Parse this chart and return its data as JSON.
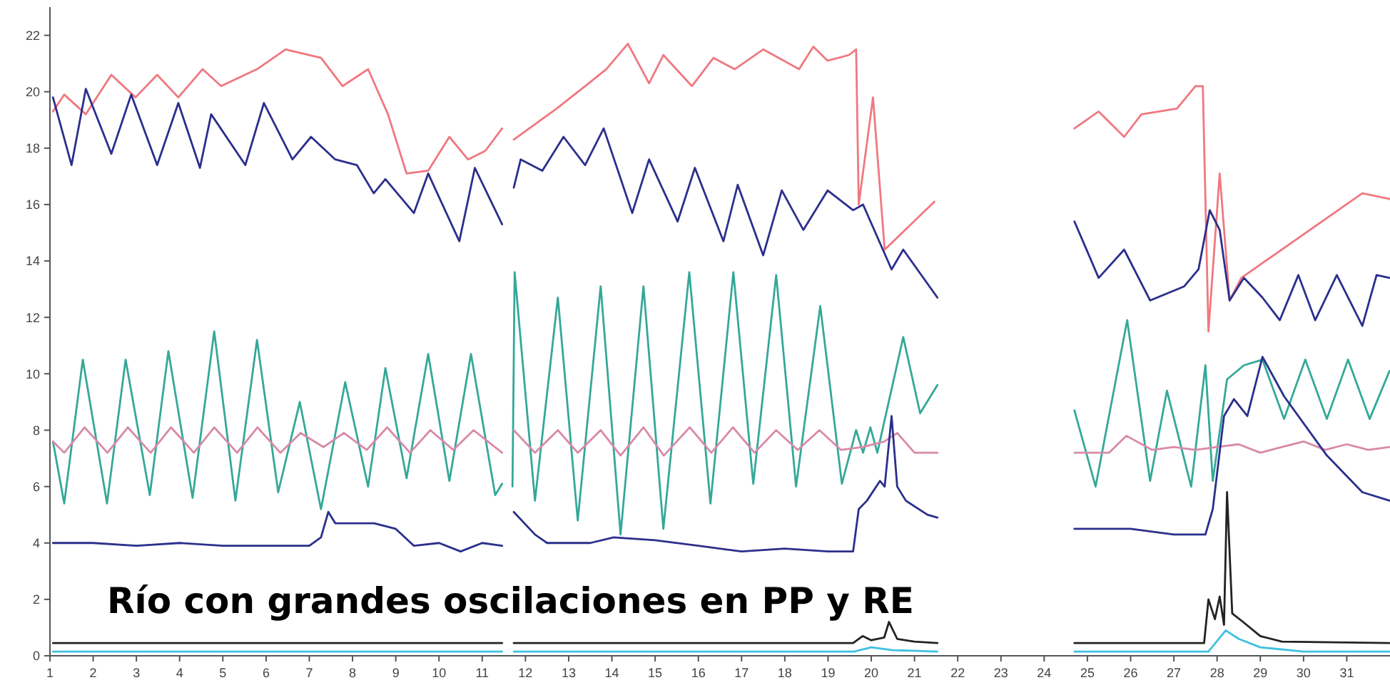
{
  "chart_data": {
    "type": "line",
    "annotations": [
      "Río con grandes oscilaciones en PP y RE"
    ],
    "xlim": [
      1,
      32
    ],
    "xticks": [
      1,
      2,
      3,
      4,
      5,
      6,
      7,
      8,
      9,
      10,
      11,
      12,
      13,
      14,
      15,
      16,
      17,
      18,
      19,
      20,
      21,
      22,
      23,
      24,
      25,
      26,
      27,
      28,
      29,
      30,
      31
    ],
    "ylim": [
      0,
      23
    ],
    "yticks": [
      0,
      2,
      4,
      6,
      8,
      10,
      12,
      14,
      16,
      18,
      20,
      22
    ],
    "grid": false,
    "marker": "none",
    "line_style": "solid",
    "series": [
      {
        "color": "#f07880",
        "x": [
          1.07,
          1.33,
          1.83,
          2.42,
          2.98,
          3.48,
          3.97,
          4.53,
          4.96,
          5.79,
          6.45,
          7.27,
          7.77,
          8.36,
          8.82,
          9.25,
          9.75,
          10.24,
          10.67,
          11.07,
          11.46,
          11.6,
          11.73,
          12.72,
          13.38,
          13.87,
          14.37,
          14.86,
          15.19,
          15.85,
          16.35,
          16.84,
          17.5,
          18.33,
          18.66,
          18.99,
          19.48,
          19.65,
          19.71,
          20.04,
          20.31,
          21.46,
          23,
          24.7,
          25.26,
          25.85,
          26.25,
          27.07,
          27.5,
          27.67,
          27.8,
          28.06,
          28.29,
          28.56,
          31.36,
          31.99
        ],
        "values": [
          19.3,
          19.9,
          19.2,
          20.6,
          19.8,
          20.6,
          19.8,
          20.8,
          20.2,
          20.8,
          21.5,
          21.2,
          20.2,
          20.8,
          19.2,
          17.1,
          17.2,
          18.4,
          17.6,
          17.9,
          18.7,
          null,
          18.3,
          19.4,
          20.2,
          20.8,
          21.7,
          20.3,
          21.3,
          20.2,
          21.2,
          20.8,
          21.5,
          20.8,
          21.6,
          21.1,
          21.3,
          21.5,
          16.0,
          19.8,
          14.4,
          16.1,
          null,
          18.7,
          19.3,
          18.4,
          19.2,
          19.4,
          20.2,
          20.2,
          11.5,
          17.1,
          12.6,
          13.4,
          16.4,
          16.2
        ]
      },
      {
        "color": "#2b2f8c",
        "x": [
          1.07,
          1.5,
          1.83,
          2.42,
          2.88,
          3.48,
          3.97,
          4.47,
          4.73,
          5.52,
          5.95,
          6.61,
          7.04,
          7.6,
          8.1,
          8.49,
          8.76,
          9.42,
          9.75,
          10.47,
          10.83,
          11.46,
          11.6,
          11.73,
          11.89,
          12.39,
          12.88,
          13.38,
          13.81,
          14.47,
          14.86,
          15.52,
          15.92,
          16.58,
          16.91,
          17.5,
          17.93,
          18.43,
          18.99,
          19.58,
          19.81,
          20.47,
          20.74,
          21.53,
          23,
          24.7,
          25.26,
          25.85,
          26.45,
          27.24,
          27.57,
          27.83,
          28.06,
          28.29,
          28.62,
          29.05,
          29.45,
          29.88,
          30.27,
          30.77,
          31.36,
          31.69,
          31.99
        ],
        "values": [
          19.8,
          17.4,
          20.1,
          17.8,
          19.9,
          17.4,
          19.6,
          17.3,
          19.2,
          17.4,
          19.6,
          17.6,
          18.4,
          17.6,
          17.4,
          16.4,
          16.9,
          15.7,
          17.1,
          14.7,
          17.3,
          15.3,
          null,
          16.6,
          17.6,
          17.2,
          18.4,
          17.4,
          18.7,
          15.7,
          17.6,
          15.4,
          17.3,
          14.7,
          16.7,
          14.2,
          16.5,
          15.1,
          16.5,
          15.8,
          16.0,
          13.7,
          14.4,
          12.7,
          null,
          15.4,
          13.4,
          14.4,
          12.6,
          13.1,
          13.7,
          15.8,
          15.1,
          12.6,
          13.4,
          12.7,
          11.9,
          13.5,
          11.9,
          13.5,
          11.7,
          13.5,
          13.4
        ]
      },
      {
        "color": "#35a898",
        "x": [
          1.07,
          1.33,
          1.76,
          2.32,
          2.75,
          3.31,
          3.74,
          4.3,
          4.8,
          5.29,
          5.79,
          6.28,
          6.78,
          7.27,
          7.83,
          8.36,
          8.76,
          9.25,
          9.75,
          10.24,
          10.74,
          11.3,
          11.46,
          11.6,
          11.7,
          11.75,
          12.22,
          12.75,
          13.21,
          13.74,
          14.2,
          14.73,
          15.19,
          15.79,
          16.28,
          16.81,
          17.27,
          17.8,
          18.26,
          18.82,
          19.32,
          19.65,
          19.81,
          19.98,
          20.14,
          20.74,
          21.13,
          21.53,
          23,
          24.7,
          25.19,
          25.92,
          26.45,
          26.84,
          27.4,
          27.73,
          27.9,
          28.23,
          28.62,
          29.05,
          29.55,
          30.04,
          30.54,
          31.03,
          31.53,
          31.99
        ],
        "values": [
          7.6,
          5.4,
          10.5,
          5.4,
          10.5,
          5.7,
          10.8,
          5.6,
          11.5,
          5.5,
          11.2,
          5.8,
          9.0,
          5.2,
          9.7,
          6.0,
          10.2,
          6.3,
          10.7,
          6.2,
          10.7,
          5.7,
          6.1,
          null,
          6.0,
          13.6,
          5.5,
          12.7,
          4.8,
          13.1,
          4.3,
          13.1,
          4.5,
          13.6,
          5.4,
          13.6,
          6.1,
          13.5,
          6.0,
          12.4,
          6.1,
          8.0,
          7.2,
          8.1,
          7.2,
          11.3,
          8.6,
          9.6,
          null,
          8.7,
          6.0,
          11.9,
          6.2,
          9.4,
          6.0,
          10.3,
          6.2,
          9.8,
          10.3,
          10.5,
          8.4,
          10.5,
          8.4,
          10.5,
          8.4,
          10.1
        ]
      },
      {
        "color": "#d88aa8",
        "x": [
          1.07,
          1.33,
          1.8,
          2.33,
          2.8,
          3.33,
          3.8,
          4.33,
          4.8,
          5.33,
          5.8,
          6.33,
          6.8,
          7.33,
          7.8,
          8.33,
          8.8,
          9.33,
          9.8,
          10.33,
          10.8,
          11.46,
          11.6,
          11.73,
          12.22,
          12.75,
          13.21,
          13.74,
          14.2,
          14.73,
          15.2,
          15.8,
          16.3,
          16.8,
          17.3,
          17.8,
          18.3,
          18.8,
          19.3,
          19.8,
          20.3,
          20.6,
          21.0,
          21.53,
          23,
          24.7,
          25.5,
          25.9,
          26.5,
          27.0,
          27.5,
          28.0,
          28.5,
          29.0,
          29.5,
          30.0,
          30.5,
          31.0,
          31.5,
          31.99
        ],
        "values": [
          7.6,
          7.2,
          8.1,
          7.2,
          8.1,
          7.2,
          8.1,
          7.2,
          8.1,
          7.2,
          8.1,
          7.2,
          7.9,
          7.4,
          7.9,
          7.3,
          8.1,
          7.2,
          8.0,
          7.3,
          8.0,
          7.2,
          null,
          8.0,
          7.2,
          8.0,
          7.2,
          8.0,
          7.1,
          8.1,
          7.1,
          8.1,
          7.2,
          8.1,
          7.2,
          8.0,
          7.3,
          8.0,
          7.3,
          7.4,
          7.6,
          7.9,
          7.2,
          7.2,
          null,
          7.2,
          7.2,
          7.8,
          7.3,
          7.4,
          7.3,
          7.4,
          7.5,
          7.2,
          7.4,
          7.6,
          7.3,
          7.5,
          7.3,
          7.4
        ]
      },
      {
        "color": "#2b2f8c",
        "x": [
          1.07,
          2.0,
          3.0,
          4.0,
          5.0,
          6.0,
          7.0,
          7.27,
          7.44,
          7.6,
          8.5,
          9.0,
          9.42,
          10.0,
          10.5,
          11.0,
          11.46,
          11.6,
          11.73,
          12.22,
          12.5,
          13.5,
          14.04,
          15.0,
          16.0,
          17.0,
          18.0,
          19.0,
          19.58,
          19.71,
          19.9,
          20.2,
          20.31,
          20.47,
          20.6,
          20.8,
          21.3,
          21.53,
          23,
          24.7,
          26.0,
          27.0,
          27.73,
          27.9,
          28.16,
          28.39,
          28.7,
          29.05,
          29.55,
          30.54,
          31.36,
          31.99
        ],
        "values": [
          4.0,
          4.0,
          3.9,
          4.0,
          3.9,
          3.9,
          3.9,
          4.2,
          5.1,
          4.7,
          4.7,
          4.5,
          3.9,
          4.0,
          3.7,
          4.0,
          3.9,
          null,
          5.1,
          4.3,
          4.0,
          4.0,
          4.2,
          4.1,
          3.9,
          3.7,
          3.8,
          3.7,
          3.7,
          5.2,
          5.5,
          6.2,
          6.0,
          8.5,
          6.0,
          5.5,
          5.0,
          4.9,
          null,
          4.5,
          4.5,
          4.3,
          4.3,
          5.2,
          8.5,
          9.1,
          8.5,
          10.6,
          9.2,
          7.1,
          5.8,
          5.5
        ]
      },
      {
        "color": "#222222",
        "x": [
          1.07,
          11.46,
          11.6,
          11.73,
          19.58,
          19.8,
          20.0,
          20.3,
          20.41,
          20.6,
          21.0,
          21.53,
          23,
          24.7,
          27.7,
          27.8,
          27.95,
          28.06,
          28.16,
          28.23,
          28.35,
          28.6,
          29.0,
          29.5,
          31.99
        ],
        "values": [
          0.45,
          0.45,
          null,
          0.45,
          0.45,
          0.7,
          0.55,
          0.65,
          1.2,
          0.6,
          0.5,
          0.45,
          null,
          0.45,
          0.45,
          2.0,
          1.3,
          2.1,
          1.1,
          5.8,
          1.5,
          1.2,
          0.7,
          0.5,
          0.45
        ]
      },
      {
        "color": "#40c0e0",
        "x": [
          1.07,
          11.46,
          11.6,
          11.73,
          19.6,
          20.0,
          20.5,
          21.53,
          23,
          24.7,
          27.8,
          28.2,
          28.5,
          29.0,
          30.0,
          31.99
        ],
        "values": [
          0.15,
          0.15,
          null,
          0.15,
          0.15,
          0.3,
          0.2,
          0.15,
          null,
          0.15,
          0.15,
          0.9,
          0.6,
          0.3,
          0.15,
          0.15
        ]
      }
    ]
  }
}
